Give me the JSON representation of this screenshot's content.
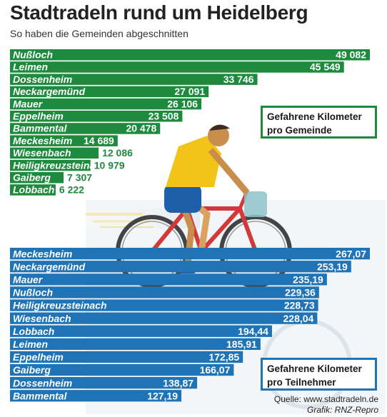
{
  "header": {
    "title": "Stadtradeln rund um Heidelberg",
    "subtitle": "So haben die Gemeinden abgeschnitten"
  },
  "colors": {
    "green": "#1e8a3e",
    "blue": "#1f73b7",
    "cyclist_shirt": "#f2c318",
    "bike_frame": "#d23a3a"
  },
  "legend_top": {
    "line1": "Gefahrene Kilometer",
    "line2": "pro Gemeinde"
  },
  "legend_bottom": {
    "line1": "Gefahrene Kilometer",
    "line2": "pro Teilnehmer"
  },
  "footer": {
    "source": "Quelle: www.stadtradeln.de",
    "credit": "Grafik: RNZ-Repro"
  },
  "chart_data": [
    {
      "type": "bar",
      "orientation": "horizontal",
      "color": "#1e8a3e",
      "categories": [
        "Nußloch",
        "Leimen",
        "Dossenheim",
        "Neckargemünd",
        "Mauer",
        "Eppelheim",
        "Bammental",
        "Meckesheim",
        "Wiesenbach",
        "Heiligkreuzsteinach",
        "Gaiberg",
        "Lobbach"
      ],
      "values": [
        49082,
        45549,
        33746,
        27091,
        26106,
        23508,
        20478,
        14689,
        12086,
        10979,
        7307,
        6222
      ],
      "value_labels": [
        "49 082",
        "45 549",
        "33 746",
        "27 091",
        "26 106",
        "23 508",
        "20 478",
        "14 689",
        "12 086",
        "10 979",
        "7 307",
        "6 222"
      ],
      "xlim": [
        0,
        49082
      ]
    },
    {
      "type": "bar",
      "orientation": "horizontal",
      "color": "#1f73b7",
      "categories": [
        "Meckesheim",
        "Neckargemünd",
        "Mauer",
        "Nußloch",
        "Heiligkreuzsteinach",
        "Wiesenbach",
        "Lobbach",
        "Leimen",
        "Eppelheim",
        "Gaiberg",
        "Dossenheim",
        "Bammental"
      ],
      "values": [
        267.07,
        253.19,
        235.19,
        229.36,
        228.73,
        228.04,
        194.44,
        185.91,
        172.85,
        166.07,
        138.87,
        127.19
      ],
      "value_labels": [
        "267,07",
        "253,19",
        "235,19",
        "229,36",
        "228,73",
        "228,04",
        "194,44",
        "185,91",
        "172,85",
        "166,07",
        "138,87",
        "127,19"
      ],
      "xlim": [
        0,
        267.07
      ]
    }
  ]
}
